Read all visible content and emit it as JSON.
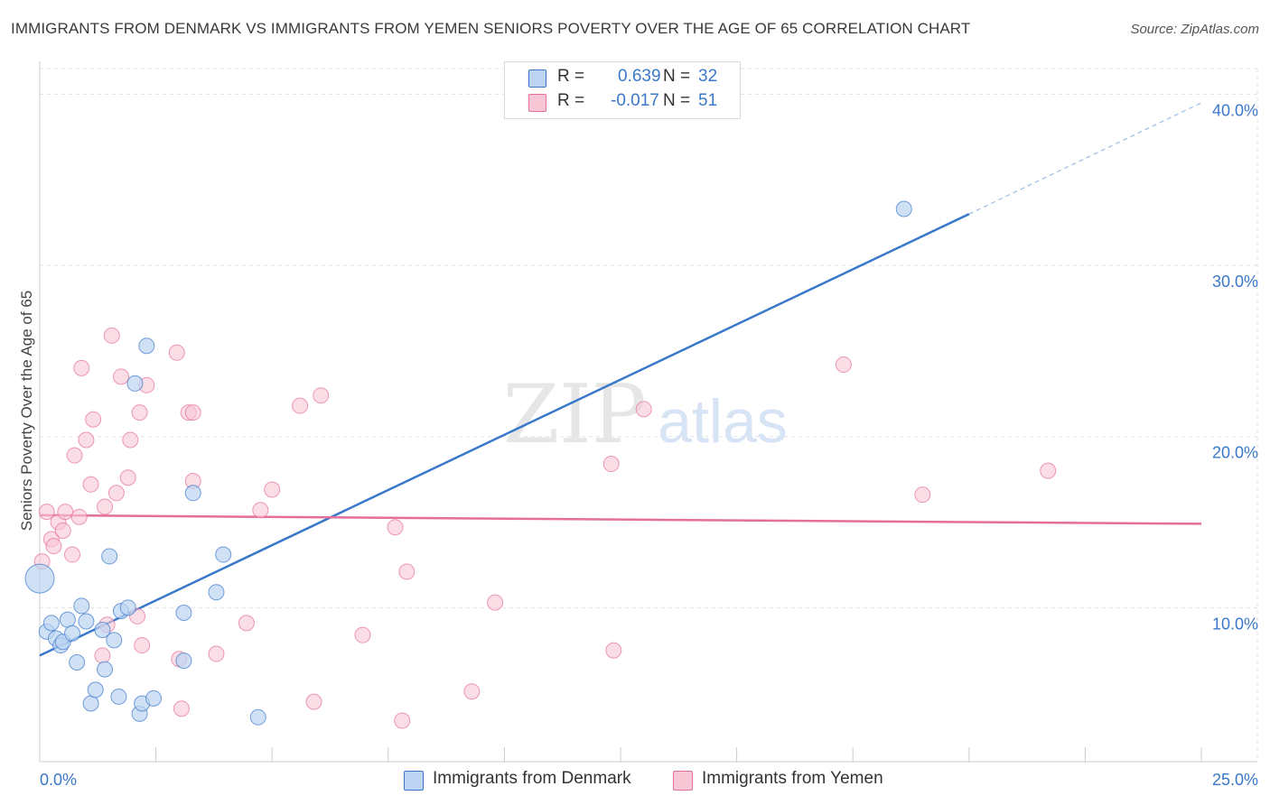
{
  "title": "IMMIGRANTS FROM DENMARK VS IMMIGRANTS FROM YEMEN SENIORS POVERTY OVER THE AGE OF 65 CORRELATION CHART",
  "source": "Source: ZipAtlas.com",
  "watermark": {
    "zip": "ZIP",
    "atlas": "atlas"
  },
  "colors": {
    "denmark": "#3a78c9",
    "yemen": "#e56f9a",
    "denmark_fill": "#bcd4f2",
    "yemen_fill": "#f8c7d6",
    "axis_text": "#3a78c9"
  },
  "legend": {
    "rows": [
      {
        "r_label": "R =",
        "r_value": "0.639",
        "n_label": "N =",
        "n_value": "32"
      },
      {
        "r_label": "R =",
        "r_value": "-0.017",
        "n_label": "N =",
        "n_value": "51"
      }
    ]
  },
  "bottom_legend": {
    "denmark": "Immigrants from Denmark",
    "yemen": "Immigrants from Yemen"
  },
  "chart_data": {
    "type": "scatter",
    "title": "IMMIGRANTS FROM DENMARK VS IMMIGRANTS FROM YEMEN SENIORS POVERTY OVER THE AGE OF 65 CORRELATION CHART",
    "xlabel": "",
    "ylabel": "Seniors Poverty Over the Age of 65",
    "xlim": [
      0,
      25
    ],
    "ylim": [
      1,
      41.5
    ],
    "x_tick_labels": [
      {
        "value": 0,
        "label": "0.0%"
      },
      {
        "value": 25,
        "label": "25.0%"
      }
    ],
    "y_tick_labels": [
      {
        "value": 10,
        "label": "10.0%"
      },
      {
        "value": 20,
        "label": "20.0%"
      },
      {
        "value": 30,
        "label": "30.0%"
      },
      {
        "value": 40,
        "label": "40.0%"
      }
    ],
    "grid": true,
    "series": [
      {
        "name": "Immigrants from Denmark",
        "r": 0.639,
        "n": 32,
        "trend": {
          "x0": 0,
          "y0": 7.2,
          "x1": 20,
          "y1": 33.0,
          "dash_to_x": 25,
          "dash_to_y": 39.5
        },
        "points": [
          [
            0.0,
            11.7,
            "large"
          ],
          [
            0.15,
            8.6
          ],
          [
            0.25,
            9.1
          ],
          [
            0.35,
            8.2
          ],
          [
            0.45,
            7.8
          ],
          [
            0.5,
            8.0
          ],
          [
            0.6,
            9.3
          ],
          [
            0.7,
            8.5
          ],
          [
            0.8,
            6.8
          ],
          [
            0.9,
            10.1
          ],
          [
            1.0,
            9.2
          ],
          [
            1.1,
            4.4
          ],
          [
            1.2,
            5.2
          ],
          [
            1.35,
            8.7
          ],
          [
            1.4,
            6.4
          ],
          [
            1.5,
            13.0
          ],
          [
            1.6,
            8.1
          ],
          [
            1.7,
            4.8
          ],
          [
            1.75,
            9.8
          ],
          [
            1.9,
            10.0
          ],
          [
            2.05,
            23.1
          ],
          [
            2.15,
            3.8
          ],
          [
            2.2,
            4.4
          ],
          [
            2.3,
            25.3
          ],
          [
            2.45,
            4.7
          ],
          [
            3.1,
            6.9
          ],
          [
            3.1,
            9.7
          ],
          [
            3.3,
            16.7
          ],
          [
            3.8,
            10.9
          ],
          [
            3.95,
            13.1
          ],
          [
            4.7,
            3.6
          ],
          [
            18.6,
            33.3
          ]
        ]
      },
      {
        "name": "Immigrants from Yemen",
        "r": -0.017,
        "n": 51,
        "trend": {
          "x0": 0,
          "y0": 15.4,
          "x1": 25,
          "y1": 14.9
        },
        "points": [
          [
            0.05,
            12.7
          ],
          [
            0.15,
            15.6
          ],
          [
            0.25,
            14.0
          ],
          [
            0.3,
            13.6
          ],
          [
            0.4,
            15.0
          ],
          [
            0.5,
            14.5
          ],
          [
            0.55,
            15.6
          ],
          [
            0.7,
            13.1
          ],
          [
            0.75,
            18.9
          ],
          [
            0.85,
            15.3
          ],
          [
            0.9,
            24.0
          ],
          [
            1.0,
            19.8
          ],
          [
            1.1,
            17.2
          ],
          [
            1.15,
            21.0
          ],
          [
            1.35,
            7.2
          ],
          [
            1.4,
            15.9
          ],
          [
            1.45,
            9.0
          ],
          [
            1.55,
            25.9
          ],
          [
            1.65,
            16.7
          ],
          [
            1.75,
            23.5
          ],
          [
            1.9,
            17.6
          ],
          [
            1.95,
            19.8
          ],
          [
            2.1,
            9.5
          ],
          [
            2.15,
            21.4
          ],
          [
            2.2,
            7.8
          ],
          [
            2.3,
            23.0
          ],
          [
            2.95,
            24.9
          ],
          [
            3.0,
            7.0
          ],
          [
            3.05,
            4.1
          ],
          [
            3.2,
            21.4
          ],
          [
            3.3,
            21.4
          ],
          [
            3.3,
            17.4
          ],
          [
            3.8,
            7.3
          ],
          [
            4.45,
            9.1
          ],
          [
            4.75,
            15.7
          ],
          [
            5.0,
            16.9
          ],
          [
            5.6,
            21.8
          ],
          [
            5.9,
            4.5
          ],
          [
            6.05,
            22.4
          ],
          [
            6.95,
            8.4
          ],
          [
            7.65,
            14.7
          ],
          [
            7.8,
            3.4
          ],
          [
            7.9,
            12.1
          ],
          [
            9.3,
            5.1
          ],
          [
            9.8,
            10.3
          ],
          [
            12.3,
            18.4
          ],
          [
            12.35,
            7.5
          ],
          [
            13.0,
            21.6
          ],
          [
            17.3,
            24.2
          ],
          [
            19.0,
            16.6
          ],
          [
            21.7,
            18.0
          ]
        ]
      }
    ]
  }
}
